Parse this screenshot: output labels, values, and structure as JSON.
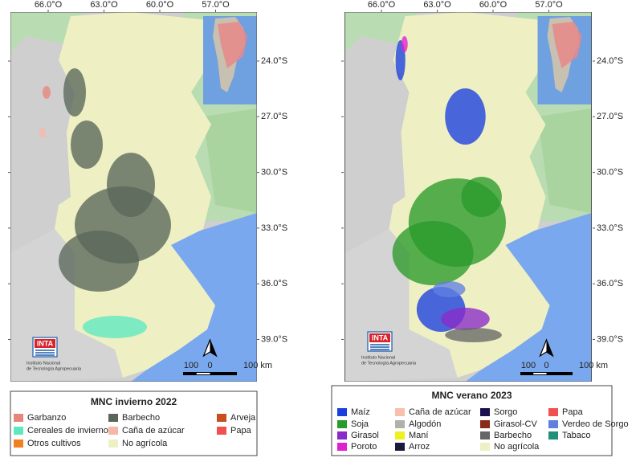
{
  "maps": [
    {
      "lon_labels": [
        "66.0°O",
        "63.0°O",
        "60.0°O",
        "57.0°O"
      ],
      "lat_labels": [
        "24.0°S",
        "27.0°S",
        "30.0°S",
        "33.0°S",
        "36.0°S",
        "39.0°S"
      ],
      "logo": {
        "name": "INTA",
        "lines": [
          "Instituto Nacional",
          "de Tecnología Agropecuaria"
        ]
      },
      "scale": [
        "100",
        "0",
        "100 km"
      ],
      "legend": {
        "title": "MNC invierno 2022",
        "items": [
          {
            "label": "Garbanzo",
            "color": "#e8857a"
          },
          {
            "label": "Cereales de invierno",
            "color": "#5ee8c0"
          },
          {
            "label": "Otros cultivos",
            "color": "#f08020"
          },
          {
            "label": "Barbecho",
            "color": "#5a665a"
          },
          {
            "label": "Caña de azúcar",
            "color": "#f7b7a8"
          },
          {
            "label": "No agrícola",
            "color": "#eef0c4"
          },
          {
            "label": "Arveja",
            "color": "#c8501e"
          },
          {
            "label": "Papa",
            "color": "#f05050"
          }
        ]
      }
    },
    {
      "lon_labels": [
        "66.0°O",
        "63.0°O",
        "60.0°O",
        "57.0°O"
      ],
      "lat_labels": [
        "24.0°S",
        "27.0°S",
        "30.0°S",
        "33.0°S",
        "36.0°S",
        "39.0°S"
      ],
      "logo": {
        "name": "INTA",
        "lines": [
          "Instituto Nacional",
          "de Tecnología Agropecuaria"
        ]
      },
      "scale": [
        "100",
        "0",
        "100 km"
      ],
      "legend": {
        "title": "MNC verano 2023",
        "items": [
          {
            "label": "Maíz",
            "color": "#1a3ee0"
          },
          {
            "label": "Soja",
            "color": "#2a9a2a"
          },
          {
            "label": "Girasol",
            "color": "#8a2ac8"
          },
          {
            "label": "Poroto",
            "color": "#e020d0"
          },
          {
            "label": "Caña de azúcar",
            "color": "#f7bfae"
          },
          {
            "label": "Algodón",
            "color": "#b0b0b0"
          },
          {
            "label": "Maní",
            "color": "#f0f020"
          },
          {
            "label": "Arroz",
            "color": "#1a1a3a"
          },
          {
            "label": "Sorgo",
            "color": "#1a1050"
          },
          {
            "label": "Girasol-CV",
            "color": "#8a2a1a"
          },
          {
            "label": "Barbecho",
            "color": "#666666"
          },
          {
            "label": "No agrícola",
            "color": "#eef0c4"
          },
          {
            "label": "Papa",
            "color": "#f05050"
          },
          {
            "label": "Verdeo de Sorgo",
            "color": "#6080e0"
          },
          {
            "label": "Tabaco",
            "color": "#20907a"
          }
        ]
      }
    }
  ]
}
